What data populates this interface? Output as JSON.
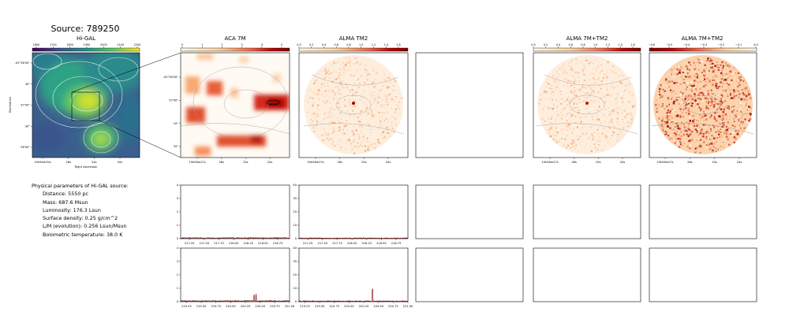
{
  "title": "Source: 789250",
  "panels": {
    "higal": {
      "title": "Hi-GAL",
      "cbar_ticks": [
        "1600",
        "1700",
        "1800",
        "1900",
        "2000",
        "2100",
        "2200"
      ],
      "xlabel": "Right Ascension",
      "ylabel": "Declination",
      "xticks": [
        "19h56m32s",
        "28s",
        "24s",
        "20s"
      ],
      "yticks": [
        "-02°56'00\"",
        "30\"",
        "57'00\"",
        "30\"",
        "58'00\""
      ]
    },
    "aca": {
      "title": "ACA 7M",
      "cbar_ticks": [
        "0",
        "1",
        "2",
        "3",
        "4",
        "5"
      ],
      "xticks": [
        "19h56m27s",
        "26s",
        "25s",
        "24s"
      ],
      "yticks": [
        "-02°56'50\"",
        "57'00\"",
        "10\"",
        "20\""
      ]
    },
    "tm2": {
      "title": "ALMA TM2",
      "cbar_ticks": [
        "0.0",
        "0.2",
        "0.4",
        "0.6",
        "0.8",
        "1.0",
        "1.2",
        "1.4",
        "1.6"
      ],
      "xticks": [
        "19h56m27s",
        "26s",
        "25s",
        "24s"
      ]
    },
    "comb": {
      "title": "ALMA 7M+TM2",
      "cbar_ticks": [
        "0.0",
        "0.2",
        "0.4",
        "0.6",
        "0.8",
        "1.0",
        "1.2",
        "1.4",
        "1.6"
      ],
      "xticks": [
        "19h56m27s",
        "26s",
        "25s",
        "24s"
      ]
    },
    "comb_res": {
      "title": "ALMA 7M+TM2",
      "cbar_ticks": [
        "−0.6",
        "−0.5",
        "−0.4",
        "−0.3",
        "−0.2",
        "−0.1",
        "0.0"
      ],
      "xticks": [
        "19h56m27s",
        "26s",
        "25s",
        "24s"
      ]
    }
  },
  "info": {
    "heading": "Physical parameters of Hi-GAL source:",
    "lines": [
      "Distance: 5550 pc",
      "Mass: 687.6 Msun",
      "Luminosity: 176.3 Lsun",
      "Surface density: 0.25 g/cm^2",
      "L/M (evolution): 0.256 Lsun/Msun",
      "Bolometric temperature: 38.0 K"
    ]
  },
  "chart_data": [
    {
      "type": "line",
      "panel": "aca-spectrum-1",
      "x_range": [
        217.1,
        218.95
      ],
      "ylim": [
        0,
        4
      ],
      "yticks": [
        "0",
        "1",
        "2",
        "3",
        "4"
      ],
      "xticks": [
        "217.25",
        "217.50",
        "217.75",
        "218.00",
        "218.25",
        "218.50",
        "218.75"
      ],
      "baseline": 0.05,
      "spikes": []
    },
    {
      "type": "line",
      "panel": "tm2-spectrum-1",
      "x_range": [
        217.1,
        218.95
      ],
      "ylim": [
        0,
        40
      ],
      "yticks": [
        "0",
        "10",
        "20",
        "30",
        "40"
      ],
      "xticks": [
        "217.25",
        "217.50",
        "217.75",
        "218.00",
        "218.25",
        "218.50",
        "218.75"
      ],
      "baseline": 0.3,
      "spikes": []
    },
    {
      "type": "line",
      "panel": "aca-spectrum-2",
      "x_range": [
        219.15,
        221.0
      ],
      "ylim": [
        0,
        4
      ],
      "yticks": [
        "0",
        "1",
        "2",
        "3",
        "4"
      ],
      "xticks": [
        "219.25",
        "219.50",
        "219.75",
        "220.00",
        "220.25",
        "220.50",
        "220.75",
        "221.00"
      ],
      "baseline": 0.05,
      "spikes": [
        {
          "x": 220.4,
          "y": 0.5
        },
        {
          "x": 220.43,
          "y": 0.6
        }
      ]
    },
    {
      "type": "line",
      "panel": "tm2-spectrum-2",
      "x_range": [
        219.15,
        221.0
      ],
      "ylim": [
        0,
        40
      ],
      "yticks": [
        "0",
        "10",
        "20",
        "30",
        "40"
      ],
      "xticks": [
        "219.25",
        "219.50",
        "219.75",
        "220.00",
        "220.25",
        "220.50",
        "220.75",
        "221.00"
      ],
      "baseline": 0.3,
      "spikes": [
        {
          "x": 220.4,
          "y": 9.5
        }
      ]
    }
  ]
}
